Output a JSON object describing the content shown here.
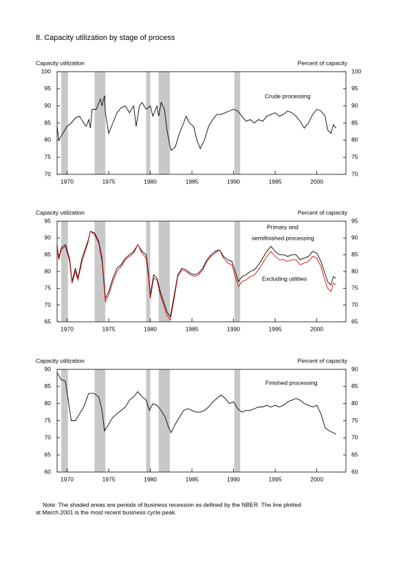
{
  "title": "8.  Capacity utilization by stage of process",
  "note": [
    "Note: The shaded areas are periods of business recession as defined by the NBER. The line plotted",
    "at March 2001 is the most recent business cycle peak."
  ],
  "chart_data": [
    {
      "type": "line",
      "left_axis_label": "Capacity utilization",
      "right_axis_label": "Percent of capacity",
      "xlim": [
        1968.8,
        2003.5
      ],
      "xticks": [
        1970,
        1975,
        1980,
        1985,
        1990,
        1995,
        2000
      ],
      "ylim": [
        70,
        100
      ],
      "yticks": [
        70,
        75,
        80,
        85,
        90,
        95,
        100
      ],
      "y2lim": [
        70,
        100
      ],
      "y2ticks": [
        70,
        75,
        80,
        85,
        90,
        95,
        100
      ],
      "recessions": [
        [
          1969.3,
          1970.1
        ],
        [
          1973.3,
          1974.6
        ],
        [
          1979.5,
          1980.0
        ],
        [
          1981.0,
          1982.35
        ],
        [
          1990.1,
          1990.8
        ]
      ],
      "x": [
        1968.8,
        1969.0,
        1969.5,
        1970.0,
        1970.5,
        1971.0,
        1971.5,
        1972.0,
        1972.3,
        1972.6,
        1972.8,
        1973.0,
        1973.5,
        1974.0,
        1974.2,
        1974.5,
        1974.6,
        1975.0,
        1975.5,
        1976.0,
        1976.5,
        1977.0,
        1977.5,
        1978.0,
        1978.3,
        1978.7,
        1979.0,
        1979.5,
        1980.0,
        1980.3,
        1980.8,
        1981.0,
        1981.3,
        1981.7,
        1982.0,
        1982.3,
        1982.5,
        1983.0,
        1983.5,
        1984.0,
        1984.3,
        1984.7,
        1985.2,
        1985.6,
        1986.0,
        1986.5,
        1987.0,
        1987.5,
        1988.0,
        1988.5,
        1989.0,
        1989.5,
        1990.0,
        1990.5,
        1991.0,
        1991.5,
        1992.0,
        1992.5,
        1993.0,
        1993.5,
        1994.0,
        1994.5,
        1995.0,
        1995.5,
        1996.0,
        1996.5,
        1997.0,
        1997.5,
        1998.0,
        1998.5,
        1999.0,
        1999.5,
        2000.0,
        2000.5,
        2001.0,
        2001.3,
        2001.7,
        2002.0,
        2002.3
      ],
      "series": [
        {
          "label": [
            "Crude processing"
          ],
          "color": "#000000",
          "values": [
            84,
            80,
            82,
            84,
            85,
            86.5,
            87,
            85,
            84,
            86,
            83.5,
            89,
            89,
            92,
            90,
            93,
            88,
            82,
            85,
            88,
            89.5,
            90,
            88,
            90,
            84,
            90,
            91,
            89,
            90,
            87,
            90,
            87,
            91,
            89,
            83,
            79,
            77,
            78,
            82,
            85,
            87,
            85,
            84,
            80,
            77.5,
            80,
            84,
            86,
            87.5,
            87.5,
            88,
            88.5,
            89,
            88.5,
            87,
            85.5,
            86,
            85,
            86,
            85.5,
            87,
            87.5,
            88,
            87,
            87.5,
            88.5,
            88,
            87,
            85.5,
            83.5,
            85,
            87.5,
            89,
            88.5,
            87,
            83,
            82,
            84.5,
            83.5
          ]
        }
      ]
    },
    {
      "type": "line",
      "left_axis_label": "Capacity utilization",
      "right_axis_label": "Percent of capacity",
      "xlim": [
        1968.8,
        2003.5
      ],
      "xticks": [
        1970,
        1975,
        1980,
        1985,
        1990,
        1995,
        2000
      ],
      "ylim": [
        65,
        95
      ],
      "yticks": [
        65,
        70,
        75,
        80,
        85,
        90,
        95
      ],
      "y2lim": [
        65,
        95
      ],
      "y2ticks": [
        65,
        70,
        75,
        80,
        85,
        90,
        95
      ],
      "recessions": [
        [
          1969.3,
          1970.1
        ],
        [
          1973.3,
          1974.6
        ],
        [
          1979.5,
          1980.0
        ],
        [
          1981.0,
          1982.35
        ],
        [
          1990.1,
          1990.8
        ]
      ],
      "x": [
        1968.8,
        1969.0,
        1969.3,
        1969.8,
        1970.3,
        1970.6,
        1971.0,
        1971.3,
        1971.8,
        1972.5,
        1972.8,
        1973.3,
        1973.8,
        1974.2,
        1974.6,
        1975.0,
        1975.5,
        1976.0,
        1976.5,
        1977.0,
        1977.5,
        1978.0,
        1978.5,
        1979.0,
        1979.5,
        1979.8,
        1980.0,
        1980.4,
        1980.8,
        1981.2,
        1981.6,
        1982.0,
        1982.4,
        1982.8,
        1983.3,
        1983.8,
        1984.3,
        1984.8,
        1985.3,
        1985.8,
        1986.3,
        1986.8,
        1987.3,
        1987.8,
        1988.3,
        1988.8,
        1989.3,
        1989.8,
        1990.2,
        1990.6,
        1991.0,
        1991.5,
        1992.0,
        1992.5,
        1993.0,
        1993.5,
        1994.0,
        1994.5,
        1995.0,
        1995.5,
        1996.0,
        1996.5,
        1997.0,
        1997.5,
        1998.0,
        1998.5,
        1999.0,
        1999.5,
        2000.0,
        2000.5,
        2000.9,
        2001.3,
        2001.7,
        2002.0,
        2002.3
      ],
      "series": [
        {
          "label": [
            "Primary and",
            "semifinished processing"
          ],
          "color": "#000000",
          "values": [
            88,
            84,
            87,
            88,
            84,
            77,
            81,
            78,
            84,
            89,
            92,
            91.5,
            89,
            84,
            72,
            74,
            78,
            81,
            82,
            84,
            85,
            86,
            88,
            86,
            85,
            79,
            73,
            79,
            78,
            74,
            71,
            68,
            66.5,
            72,
            79,
            81,
            80.5,
            79.5,
            79,
            79.5,
            81,
            83.5,
            85,
            86,
            86.5,
            84.5,
            83.5,
            83,
            80,
            77,
            78.5,
            79,
            80,
            80.5,
            82,
            84,
            86,
            87.5,
            86,
            85,
            85,
            84.5,
            85,
            85,
            83.5,
            84,
            84.5,
            86,
            85.5,
            83,
            80,
            77,
            76,
            78.5,
            78
          ]
        },
        {
          "label": [
            "Excluding utilities"
          ],
          "color": "#e00000",
          "values": [
            87.5,
            83.5,
            86.5,
            87.5,
            83,
            76.5,
            80,
            77.5,
            83,
            88.5,
            92,
            91,
            88.5,
            83,
            71,
            73,
            77,
            80,
            81.5,
            83.5,
            84.5,
            85.5,
            88,
            85.5,
            84,
            78,
            72,
            78,
            77.5,
            73,
            70,
            67,
            65.5,
            71,
            78.5,
            80.5,
            80,
            79,
            78.5,
            79,
            80.5,
            83,
            84.5,
            85.5,
            86.5,
            84,
            82.5,
            82,
            78.5,
            75.5,
            77,
            77.5,
            78.5,
            79,
            80.5,
            82.5,
            84.5,
            86,
            84.5,
            83.5,
            83.5,
            83,
            83.5,
            83.5,
            82,
            82.5,
            83,
            84.5,
            84,
            81.5,
            78,
            75,
            74,
            76.5,
            76
          ]
        }
      ]
    },
    {
      "type": "line",
      "left_axis_label": "Capacity utilization",
      "right_axis_label": "Percent of capacity",
      "xlim": [
        1968.8,
        2003.5
      ],
      "xticks": [
        1970,
        1975,
        1980,
        1985,
        1990,
        1995,
        2000
      ],
      "ylim": [
        60,
        90
      ],
      "yticks": [
        60,
        65,
        70,
        75,
        80,
        85,
        90
      ],
      "y2lim": [
        60,
        90
      ],
      "y2ticks": [
        60,
        65,
        70,
        75,
        80,
        85,
        90
      ],
      "recessions": [
        [
          1969.3,
          1970.1
        ],
        [
          1973.3,
          1974.6
        ],
        [
          1979.5,
          1980.0
        ],
        [
          1981.0,
          1982.35
        ],
        [
          1990.1,
          1990.8
        ]
      ],
      "x": [
        1968.8,
        1969.3,
        1969.8,
        1970.2,
        1970.5,
        1971.0,
        1971.5,
        1972.0,
        1972.6,
        1973.2,
        1973.8,
        1974.2,
        1974.5,
        1975.0,
        1975.5,
        1976.0,
        1976.5,
        1977.0,
        1977.5,
        1978.0,
        1978.5,
        1979.0,
        1979.5,
        1979.9,
        1980.3,
        1980.8,
        1981.3,
        1981.8,
        1982.2,
        1982.5,
        1983.0,
        1983.5,
        1984.0,
        1984.5,
        1985.0,
        1985.5,
        1986.0,
        1986.5,
        1987.0,
        1987.5,
        1988.0,
        1988.5,
        1989.0,
        1989.5,
        1990.0,
        1990.5,
        1991.0,
        1991.5,
        1992.0,
        1992.5,
        1993.0,
        1993.5,
        1994.0,
        1994.5,
        1995.0,
        1995.5,
        1996.0,
        1996.5,
        1997.0,
        1997.5,
        1998.0,
        1998.5,
        1999.0,
        1999.5,
        2000.0,
        2000.5,
        2001.0,
        2001.5,
        2002.0,
        2002.3
      ],
      "series": [
        {
          "label": [
            "Finished processing"
          ],
          "color": "#000000",
          "values": [
            89,
            87,
            86.5,
            80,
            75,
            75,
            77,
            79,
            83,
            83,
            82,
            78,
            72,
            74,
            76,
            77,
            78,
            79,
            81,
            82,
            83.5,
            82,
            81,
            78,
            80,
            79.5,
            78,
            76,
            73,
            71.5,
            74,
            76,
            78,
            78.5,
            78,
            77.5,
            77.5,
            78,
            79,
            80.5,
            81.5,
            82.5,
            81.5,
            80,
            80.5,
            78.5,
            77.5,
            78,
            78,
            78.5,
            79,
            79,
            79.5,
            79,
            79.5,
            79,
            79.5,
            80.5,
            81,
            81.5,
            81,
            80,
            79.5,
            79,
            79.5,
            77,
            73,
            72,
            71.5,
            71
          ]
        }
      ]
    }
  ]
}
